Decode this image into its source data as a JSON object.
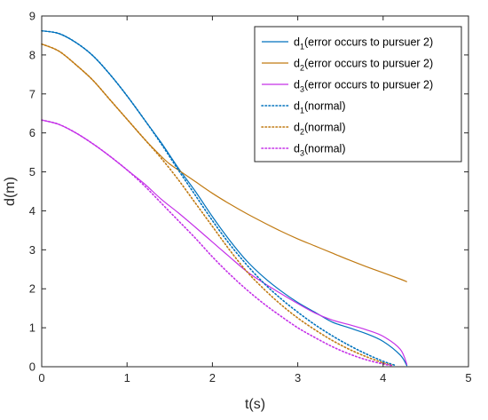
{
  "chart_data": {
    "type": "line",
    "xlabel": "t(s)",
    "ylabel": "d(m)",
    "xlim": [
      0,
      5
    ],
    "ylim": [
      0,
      9
    ],
    "xticks": [
      "0",
      "1",
      "2",
      "3",
      "4",
      "5"
    ],
    "yticks": [
      "0",
      "1",
      "2",
      "3",
      "4",
      "5",
      "6",
      "7",
      "8",
      "9"
    ],
    "grid": false,
    "legend_position": "top-right",
    "series": [
      {
        "name": "d1(error occurs to pursuer 2)",
        "label_main": "d",
        "label_sub": "1",
        "label_rest": "(error occurs to pursuer 2)",
        "color": "#0072BD",
        "style": "solid",
        "x": [
          0,
          0.2,
          0.4,
          0.6,
          0.8,
          1.0,
          1.2,
          1.4,
          1.6,
          1.8,
          2.0,
          2.2,
          2.4,
          2.6,
          2.8,
          3.0,
          3.2,
          3.4,
          3.6,
          3.8,
          4.0,
          4.2,
          4.28
        ],
        "y": [
          8.62,
          8.55,
          8.32,
          7.98,
          7.5,
          6.95,
          6.35,
          5.75,
          5.1,
          4.5,
          3.85,
          3.25,
          2.72,
          2.3,
          1.95,
          1.65,
          1.4,
          1.15,
          1.0,
          0.85,
          0.65,
          0.3,
          0.02
        ]
      },
      {
        "name": "d2(error occurs to pursuer 2)",
        "label_main": "d",
        "label_sub": "2",
        "label_rest": "(error occurs to pursuer 2)",
        "color": "#C07A12",
        "style": "solid",
        "x": [
          0,
          0.2,
          0.4,
          0.6,
          0.8,
          1.0,
          1.2,
          1.4,
          1.5,
          1.6,
          1.8,
          2.0,
          2.2,
          2.4,
          2.6,
          2.8,
          3.0,
          3.2,
          3.4,
          3.6,
          3.8,
          4.0,
          4.2,
          4.28
        ],
        "y": [
          8.28,
          8.1,
          7.75,
          7.35,
          6.85,
          6.35,
          5.85,
          5.4,
          5.2,
          5.05,
          4.75,
          4.45,
          4.18,
          3.93,
          3.7,
          3.48,
          3.28,
          3.1,
          2.92,
          2.74,
          2.57,
          2.41,
          2.25,
          2.18
        ]
      },
      {
        "name": "d3(error occurs to pursuer 2)",
        "label_main": "d",
        "label_sub": "3",
        "label_rest": "(error occurs to pursuer 2)",
        "color": "#C531E8",
        "style": "solid",
        "x": [
          0,
          0.2,
          0.4,
          0.6,
          0.8,
          1.0,
          1.2,
          1.4,
          1.6,
          1.8,
          2.0,
          2.2,
          2.4,
          2.6,
          2.8,
          3.0,
          3.2,
          3.4,
          3.6,
          3.8,
          4.0,
          4.2,
          4.28
        ],
        "y": [
          6.33,
          6.22,
          6.0,
          5.72,
          5.4,
          5.05,
          4.7,
          4.3,
          3.95,
          3.58,
          3.2,
          2.82,
          2.45,
          2.15,
          1.88,
          1.62,
          1.38,
          1.2,
          1.08,
          0.95,
          0.78,
          0.45,
          0.05
        ]
      },
      {
        "name": "d1(normal)",
        "label_main": "d",
        "label_sub": "1",
        "label_rest": "(normal)",
        "color": "#0072BD",
        "style": "dotted",
        "x": [
          0,
          0.2,
          0.4,
          0.6,
          0.8,
          1.0,
          1.2,
          1.4,
          1.6,
          1.8,
          2.0,
          2.2,
          2.4,
          2.6,
          2.8,
          3.0,
          3.2,
          3.4,
          3.6,
          3.8,
          4.0,
          4.15
        ],
        "y": [
          8.62,
          8.55,
          8.32,
          7.98,
          7.5,
          6.95,
          6.35,
          5.72,
          5.05,
          4.4,
          3.75,
          3.15,
          2.62,
          2.15,
          1.75,
          1.4,
          1.08,
          0.8,
          0.55,
          0.33,
          0.14,
          0.03
        ]
      },
      {
        "name": "d2(normal)",
        "label_main": "d",
        "label_sub": "2",
        "label_rest": "(normal)",
        "color": "#C07A12",
        "style": "dotted",
        "x": [
          0,
          0.2,
          0.4,
          0.6,
          0.8,
          1.0,
          1.2,
          1.4,
          1.6,
          1.8,
          2.0,
          2.2,
          2.4,
          2.6,
          2.8,
          3.0,
          3.2,
          3.4,
          3.6,
          3.8,
          4.0,
          4.1
        ],
        "y": [
          8.28,
          8.1,
          7.75,
          7.35,
          6.85,
          6.35,
          5.85,
          5.35,
          4.8,
          4.2,
          3.6,
          3.0,
          2.45,
          2.0,
          1.6,
          1.25,
          0.95,
          0.68,
          0.45,
          0.26,
          0.1,
          0.04
        ]
      },
      {
        "name": "d3(normal)",
        "label_main": "d",
        "label_sub": "3",
        "label_rest": "(normal)",
        "color": "#C531E8",
        "style": "dotted",
        "x": [
          0,
          0.2,
          0.4,
          0.6,
          0.8,
          1.0,
          1.2,
          1.4,
          1.6,
          1.8,
          2.0,
          2.2,
          2.4,
          2.6,
          2.8,
          3.0,
          3.2,
          3.4,
          3.6,
          3.8,
          4.0,
          4.1
        ],
        "y": [
          6.33,
          6.22,
          6.0,
          5.72,
          5.4,
          5.05,
          4.65,
          4.2,
          3.75,
          3.3,
          2.82,
          2.38,
          1.98,
          1.62,
          1.3,
          1.0,
          0.75,
          0.52,
          0.33,
          0.18,
          0.07,
          0.03
        ]
      }
    ]
  }
}
